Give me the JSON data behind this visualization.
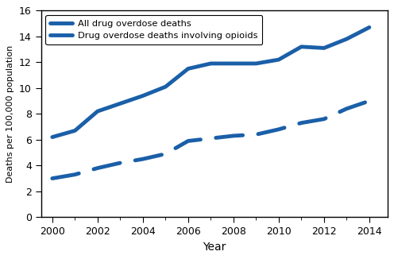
{
  "years": [
    2000,
    2001,
    2002,
    2003,
    2004,
    2005,
    2006,
    2007,
    2008,
    2009,
    2010,
    2011,
    2012,
    2013,
    2014
  ],
  "all_drug": [
    6.2,
    6.7,
    8.2,
    8.8,
    9.4,
    10.1,
    11.5,
    11.9,
    11.9,
    11.9,
    12.2,
    13.2,
    13.1,
    13.8,
    14.7
  ],
  "opioids": [
    3.0,
    3.3,
    3.8,
    4.2,
    4.5,
    4.9,
    5.9,
    6.1,
    6.3,
    6.4,
    6.8,
    7.3,
    7.6,
    8.4,
    9.0
  ],
  "line1_label": "All drug overdose deaths",
  "line2_label": "Drug overdose deaths involving opioids",
  "xlabel": "Year",
  "ylabel": "Deaths per 100,000 population",
  "ylim": [
    0,
    16
  ],
  "yticks": [
    0,
    2,
    4,
    6,
    8,
    10,
    12,
    14,
    16
  ],
  "xlim": [
    1999.5,
    2014.8
  ],
  "xticks": [
    2000,
    2002,
    2004,
    2006,
    2008,
    2010,
    2012,
    2014
  ],
  "xticks_minor": [
    2001,
    2003,
    2005,
    2007,
    2009,
    2011,
    2013
  ],
  "line_color": "#1a5fa8",
  "line_width": 3.5,
  "dash_on": 7,
  "dash_off": 4
}
